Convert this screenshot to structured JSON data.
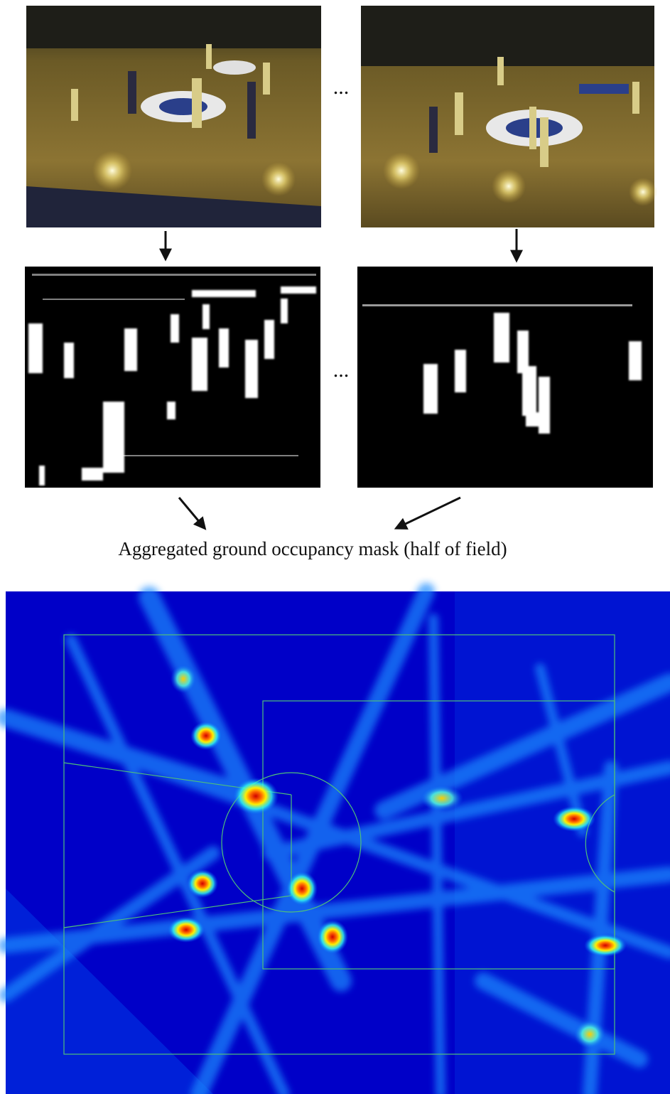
{
  "figure": {
    "ellipsis_top": "...",
    "ellipsis_middle": "...",
    "caption": "Aggregated ground occupancy mask (half of field)"
  }
}
